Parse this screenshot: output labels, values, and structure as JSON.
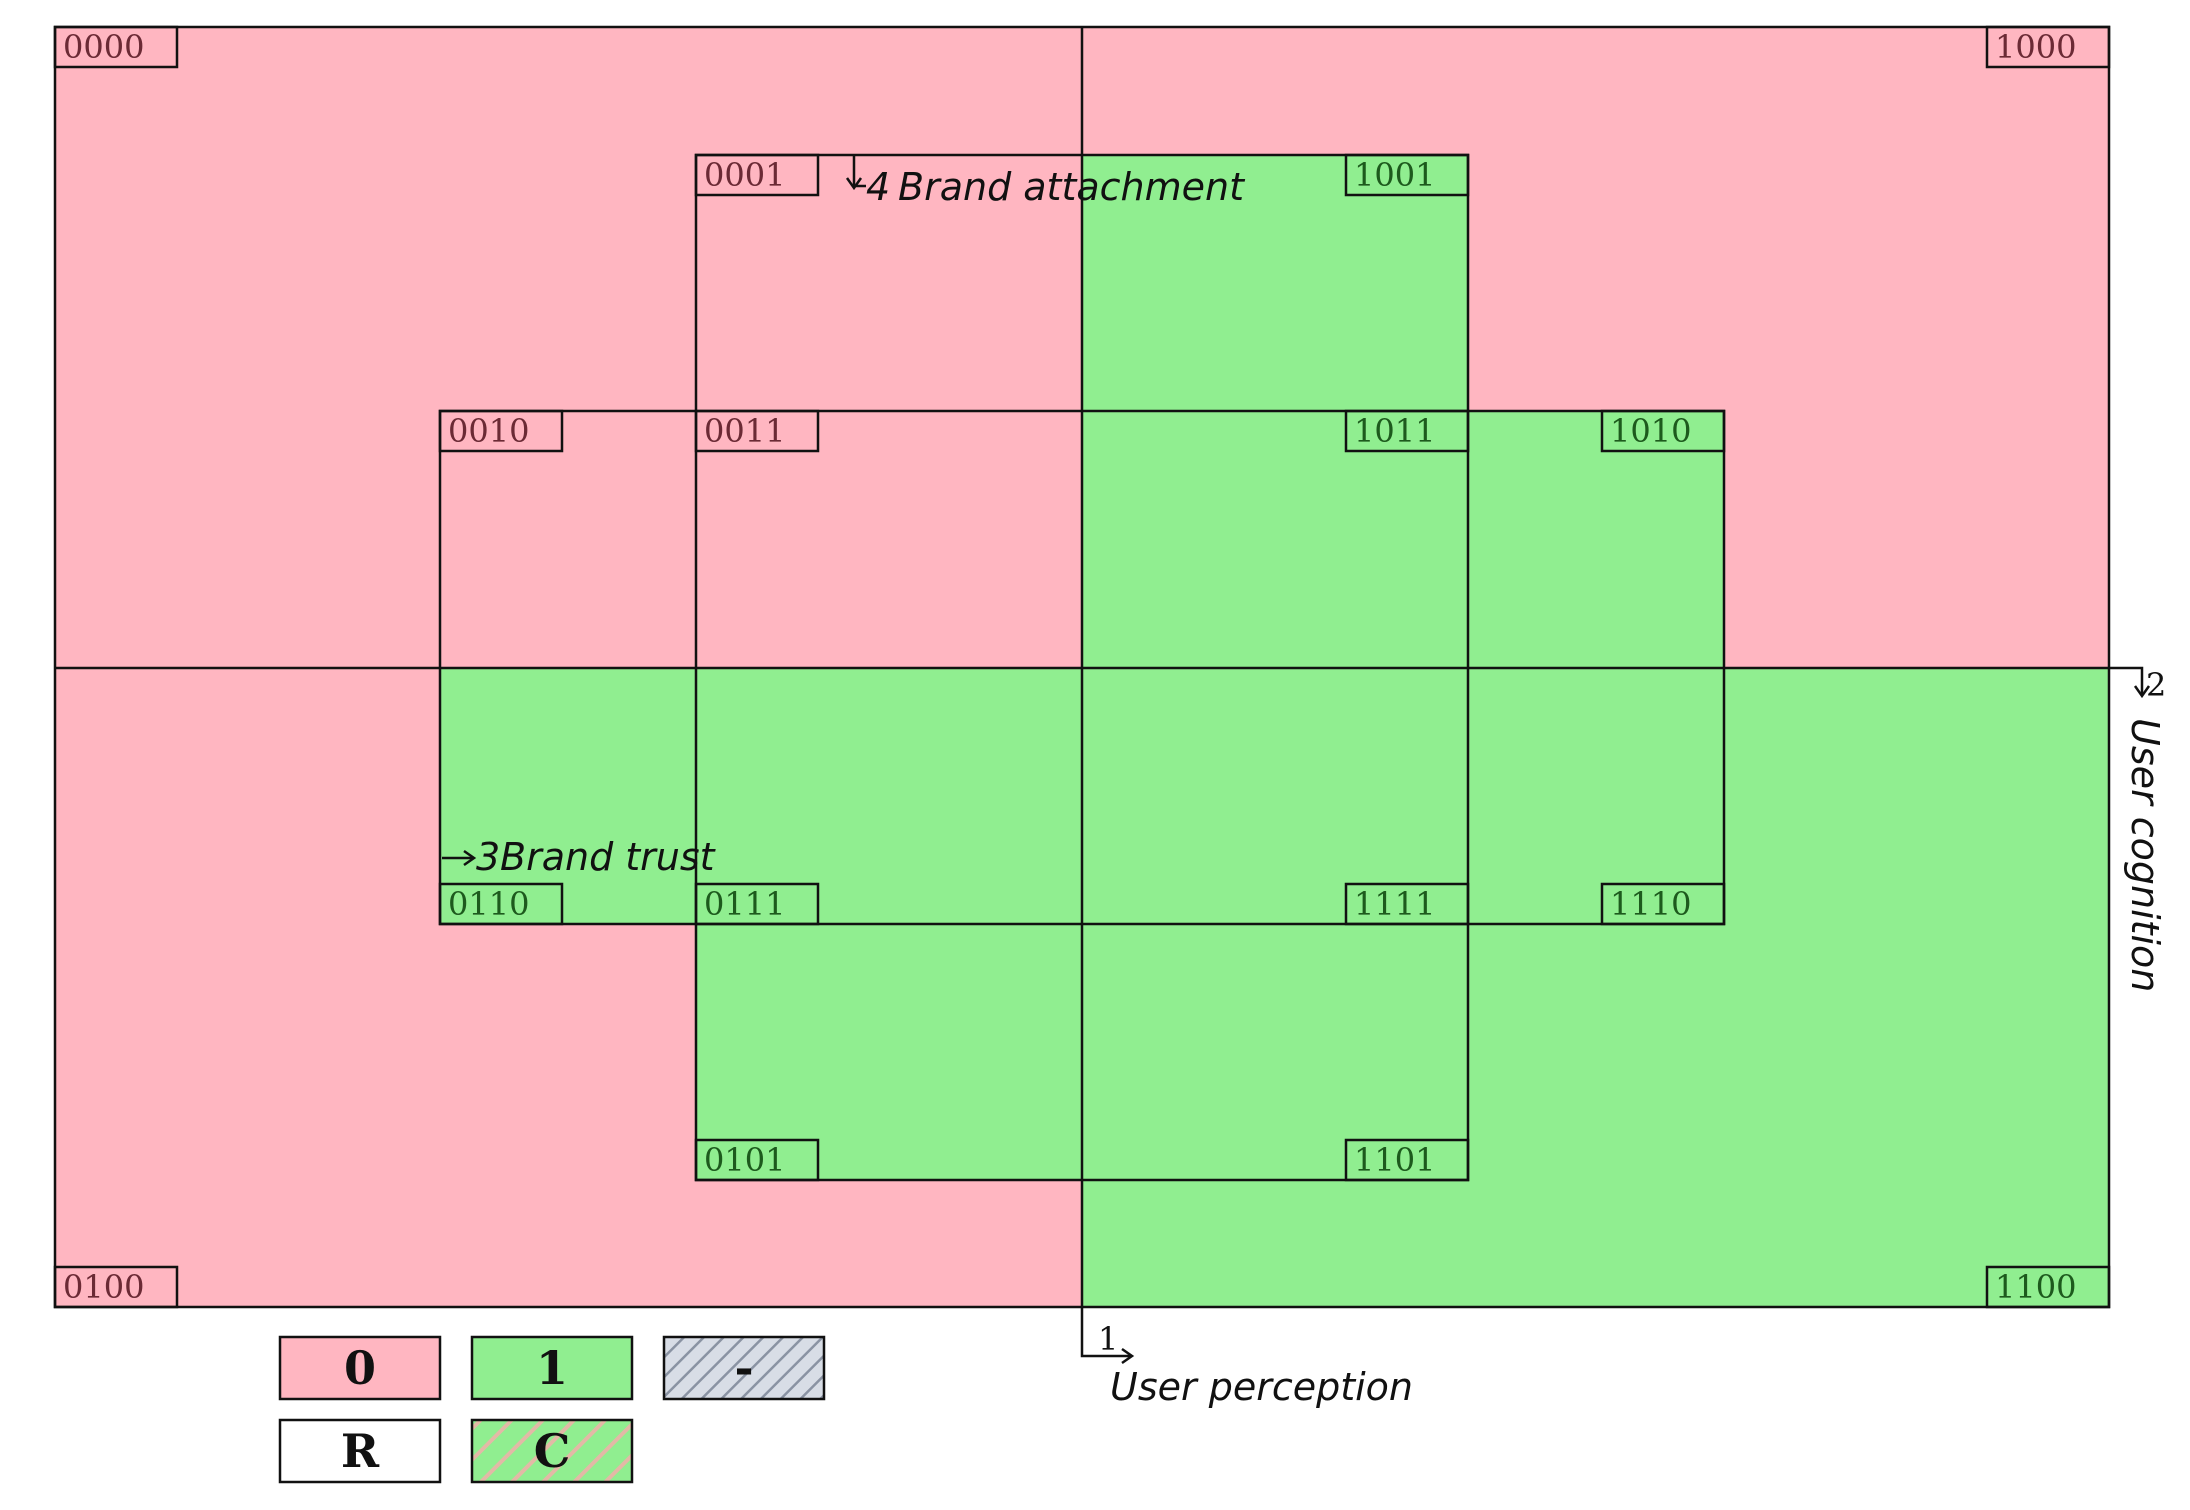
{
  "colors": {
    "zero": "#ffb6c1",
    "one": "#90ee90",
    "border": "#111111"
  },
  "variables": [
    {
      "id": "v1",
      "number": "1",
      "label": "User perception"
    },
    {
      "id": "v2",
      "number": "2",
      "label": "User cognition"
    },
    {
      "id": "v3",
      "number": "3",
      "label": "Brand trust"
    },
    {
      "id": "v4",
      "number": "4",
      "label": "Brand attachment"
    }
  ],
  "cells": [
    {
      "code": "0000",
      "value": 0
    },
    {
      "code": "0001",
      "value": 0
    },
    {
      "code": "0010",
      "value": 0
    },
    {
      "code": "0011",
      "value": 0
    },
    {
      "code": "0100",
      "value": 0
    },
    {
      "code": "0101",
      "value": 1
    },
    {
      "code": "0110",
      "value": 1
    },
    {
      "code": "0111",
      "value": 1
    },
    {
      "code": "1000",
      "value": 0
    },
    {
      "code": "1001",
      "value": 1
    },
    {
      "code": "1010",
      "value": 1
    },
    {
      "code": "1011",
      "value": 1
    },
    {
      "code": "1100",
      "value": 1
    },
    {
      "code": "1101",
      "value": 1
    },
    {
      "code": "1110",
      "value": 1
    },
    {
      "code": "1111",
      "value": 1
    }
  ],
  "legend": [
    {
      "id": "zero",
      "label": "0",
      "fill": "#ffb6c1",
      "pattern": "none"
    },
    {
      "id": "one",
      "label": "1",
      "fill": "#90ee90",
      "pattern": "none"
    },
    {
      "id": "dontcare",
      "label": "-",
      "fill": "#d8dde6",
      "pattern": "hatch"
    },
    {
      "id": "remainder",
      "label": "R",
      "fill": "#ffffff",
      "pattern": "none"
    },
    {
      "id": "contradiction",
      "label": "C",
      "fill": "#90ee90",
      "pattern": "hatch-pink"
    }
  ]
}
